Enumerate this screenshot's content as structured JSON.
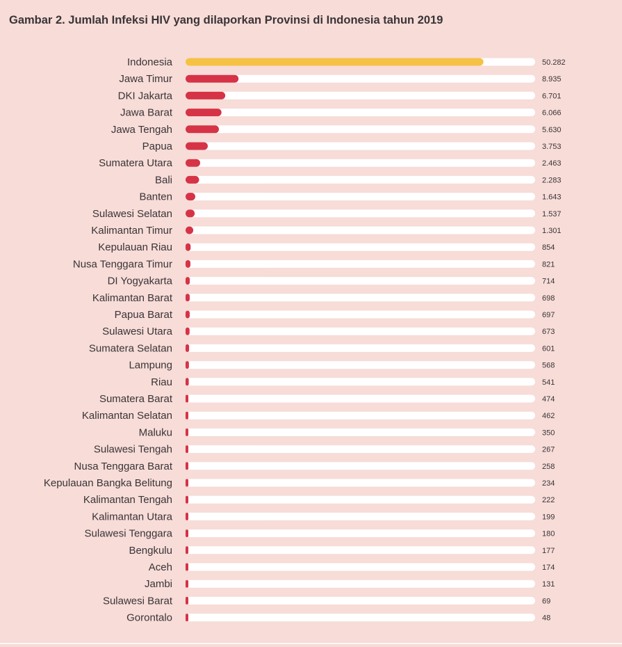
{
  "colors": {
    "background": "#f7dcd8",
    "track": "#ffffff",
    "highlight_bar": "#f6c244",
    "bar": "#d63346",
    "text": "#3a3436"
  },
  "chart_data": {
    "type": "bar",
    "orientation": "horizontal",
    "title": "Gambar 2. Jumlah Infeksi HIV yang dilaporkan Provinsi di Indonesia tahun 2019",
    "xlabel": "",
    "ylabel": "",
    "xlim": [
      0,
      59000
    ],
    "grid": false,
    "categories": [
      "Indonesia",
      "Jawa Timur",
      "DKI Jakarta",
      "Jawa Barat",
      "Jawa Tengah",
      "Papua",
      "Sumatera Utara",
      "Bali",
      "Banten",
      "Sulawesi Selatan",
      "Kalimantan Timur",
      "Kepulauan Riau",
      "Nusa Tenggara Timur",
      "DI Yogyakarta",
      "Kalimantan Barat",
      "Papua Barat",
      "Sulawesi Utara",
      "Sumatera Selatan",
      "Lampung",
      "Riau",
      "Sumatera Barat",
      "Kalimantan Selatan",
      "Maluku",
      "Sulawesi Tengah",
      "Nusa Tenggara Barat",
      "Kepulauan Bangka Belitung",
      "Kalimantan Tengah",
      "Kalimantan Utara",
      "Sulawesi Tenggara",
      "Bengkulu",
      "Aceh",
      "Jambi",
      "Sulawesi Barat",
      "Gorontalo"
    ],
    "values": [
      50282,
      8935,
      6701,
      6066,
      5630,
      3753,
      2463,
      2283,
      1643,
      1537,
      1301,
      854,
      821,
      714,
      698,
      697,
      673,
      601,
      568,
      541,
      474,
      462,
      350,
      267,
      258,
      234,
      222,
      199,
      180,
      177,
      174,
      131,
      69,
      48
    ],
    "value_labels": [
      "50.282",
      "8.935",
      "6.701",
      "6.066",
      "5.630",
      "3.753",
      "2.463",
      "2.283",
      "1.643",
      "1.537",
      "1.301",
      "854",
      "821",
      "714",
      "698",
      "697",
      "673",
      "601",
      "568",
      "541",
      "474",
      "462",
      "350",
      "267",
      "258",
      "234",
      "222",
      "199",
      "180",
      "177",
      "174",
      "131",
      "69",
      "48"
    ],
    "highlight_category": "Indonesia"
  }
}
